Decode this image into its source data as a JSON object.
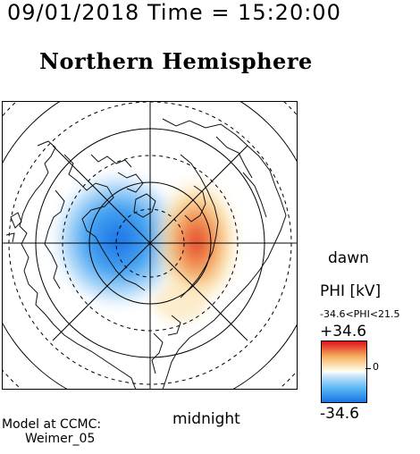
{
  "header": {
    "datetime": "09/01/2018 Time = 15:20:00"
  },
  "title": "Northern Hemisphere",
  "map": {
    "labels": {
      "right": "dawn",
      "bottom": "midnight"
    },
    "potential_pattern": {
      "negative_cell_side": "dusk (left)",
      "positive_cell_side": "dawn (right)"
    }
  },
  "colorbar": {
    "label": "PHI [kV]",
    "range_text": "-34.6<PHI<21.5",
    "max_label": "+34.6",
    "min_label": "-34.6",
    "zero_label": "0",
    "colors": {
      "max": "#e0121a",
      "mid": "#ffffff",
      "min": "#1874e6"
    }
  },
  "footer": {
    "model_line1": "Model at CCMC:",
    "model_line2": "Weimer_05"
  }
}
